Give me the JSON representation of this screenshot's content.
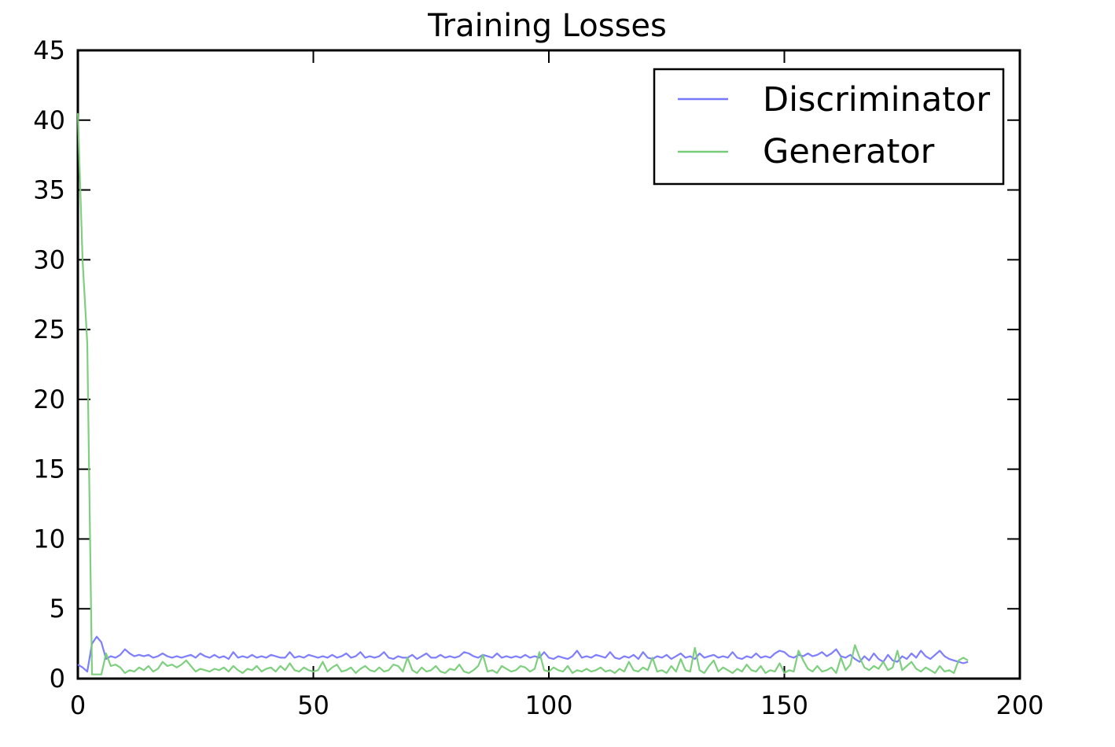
{
  "chart_data": {
    "type": "line",
    "title": "Training Losses",
    "xlabel": "",
    "ylabel": "",
    "xlim": [
      0,
      200
    ],
    "ylim": [
      0,
      45
    ],
    "xticks": [
      0,
      50,
      100,
      150,
      200
    ],
    "yticks": [
      0,
      5,
      10,
      15,
      20,
      25,
      30,
      35,
      40,
      45
    ],
    "grid": false,
    "legend_position": "top-right",
    "series": [
      {
        "name": "Discriminator",
        "color": "#7777ff",
        "x_start": 0,
        "values": [
          1.0,
          0.8,
          0.5,
          2.5,
          3.0,
          2.6,
          1.4,
          1.6,
          1.5,
          1.7,
          2.1,
          1.8,
          1.6,
          1.7,
          1.6,
          1.7,
          1.5,
          1.6,
          1.8,
          1.6,
          1.5,
          1.6,
          1.5,
          1.6,
          1.7,
          1.5,
          1.8,
          1.6,
          1.5,
          1.7,
          1.5,
          1.6,
          1.4,
          1.9,
          1.5,
          1.6,
          1.5,
          1.7,
          1.5,
          1.6,
          1.5,
          1.7,
          1.6,
          1.5,
          1.5,
          1.9,
          1.5,
          1.6,
          1.5,
          1.7,
          1.6,
          1.5,
          1.6,
          1.5,
          1.7,
          1.5,
          1.6,
          1.8,
          1.5,
          1.6,
          1.9,
          1.5,
          1.6,
          1.5,
          1.6,
          1.9,
          1.5,
          1.4,
          1.6,
          1.5,
          1.5,
          1.7,
          1.4,
          1.6,
          1.8,
          1.5,
          1.5,
          1.7,
          1.5,
          1.6,
          1.5,
          1.6,
          1.9,
          1.8,
          1.6,
          1.5,
          1.7,
          1.6,
          1.5,
          1.8,
          1.5,
          1.6,
          1.5,
          1.6,
          1.5,
          1.7,
          1.5,
          1.6,
          1.5,
          1.9,
          1.5,
          1.4,
          1.6,
          1.5,
          1.4,
          1.6,
          2.0,
          1.5,
          1.6,
          1.5,
          1.7,
          1.6,
          1.5,
          1.9,
          1.5,
          1.4,
          1.6,
          1.5,
          1.7,
          1.4,
          1.9,
          1.5,
          1.4,
          1.6,
          1.5,
          1.7,
          1.4,
          1.6,
          1.8,
          1.5,
          1.6,
          1.4,
          1.8,
          1.5,
          1.6,
          1.7,
          1.5,
          1.6,
          1.5,
          1.9,
          1.5,
          1.4,
          1.6,
          1.5,
          1.8,
          1.5,
          1.6,
          1.5,
          1.8,
          2.0,
          1.9,
          1.6,
          1.5,
          1.7,
          1.6,
          1.8,
          1.6,
          1.7,
          1.9,
          1.6,
          1.8,
          2.1,
          1.6,
          1.5,
          1.7,
          1.4,
          1.2,
          1.6,
          1.3,
          1.8,
          1.4,
          1.2,
          1.7,
          1.3,
          1.2,
          1.6,
          1.4,
          1.8,
          1.5,
          2.0,
          1.6,
          1.4,
          1.7,
          2.0,
          1.6,
          1.4,
          1.3,
          1.2,
          1.1,
          1.2
        ]
      },
      {
        "name": "Generator",
        "color": "#77cc77",
        "x_start": 0,
        "values": [
          40.5,
          30.0,
          24.0,
          0.3,
          0.3,
          0.3,
          1.8,
          0.9,
          1.0,
          0.8,
          0.4,
          0.6,
          0.5,
          0.8,
          0.6,
          0.9,
          0.5,
          0.7,
          1.2,
          0.9,
          1.0,
          0.8,
          1.0,
          1.3,
          0.9,
          0.5,
          0.7,
          0.6,
          0.5,
          0.7,
          0.6,
          0.8,
          0.5,
          0.9,
          0.6,
          0.4,
          0.7,
          0.6,
          0.9,
          0.5,
          0.7,
          0.8,
          0.5,
          0.9,
          0.6,
          1.1,
          0.6,
          0.5,
          0.8,
          0.6,
          0.5,
          0.6,
          1.2,
          0.5,
          0.8,
          1.0,
          0.5,
          0.6,
          0.8,
          0.4,
          0.7,
          0.9,
          0.6,
          0.5,
          0.8,
          0.5,
          0.6,
          1.0,
          0.9,
          0.5,
          1.5,
          0.6,
          0.4,
          0.8,
          0.5,
          0.6,
          0.9,
          0.5,
          0.4,
          0.7,
          0.6,
          1.0,
          0.5,
          0.4,
          0.6,
          0.9,
          1.7,
          0.5,
          0.6,
          0.4,
          0.9,
          0.7,
          0.5,
          0.6,
          0.9,
          0.8,
          0.5,
          0.7,
          1.9,
          0.6,
          0.5,
          0.8,
          0.6,
          0.5,
          0.9,
          0.4,
          0.6,
          0.5,
          0.7,
          0.5,
          0.6,
          0.8,
          0.5,
          0.6,
          0.4,
          0.7,
          0.5,
          1.2,
          0.6,
          0.5,
          0.8,
          0.6,
          1.5,
          0.5,
          0.6,
          0.4,
          0.9,
          0.5,
          1.4,
          0.6,
          0.5,
          2.2,
          0.6,
          0.4,
          0.9,
          1.3,
          0.5,
          0.8,
          0.6,
          0.4,
          0.7,
          0.5,
          1.0,
          0.6,
          0.5,
          0.9,
          0.4,
          0.6,
          0.5,
          1.1,
          0.4,
          0.6,
          0.5,
          2.0,
          1.3,
          0.7,
          0.5,
          0.9,
          0.5,
          0.6,
          0.8,
          0.4,
          1.5,
          0.6,
          1.0,
          2.4,
          1.5,
          0.8,
          0.6,
          0.9,
          0.7,
          1.2,
          0.6,
          0.8,
          2.0,
          0.6,
          0.9,
          1.2,
          0.7,
          0.5,
          0.8,
          0.6,
          0.4,
          0.9,
          0.5,
          0.6,
          0.4,
          1.3,
          1.5,
          1.3
        ]
      }
    ]
  }
}
